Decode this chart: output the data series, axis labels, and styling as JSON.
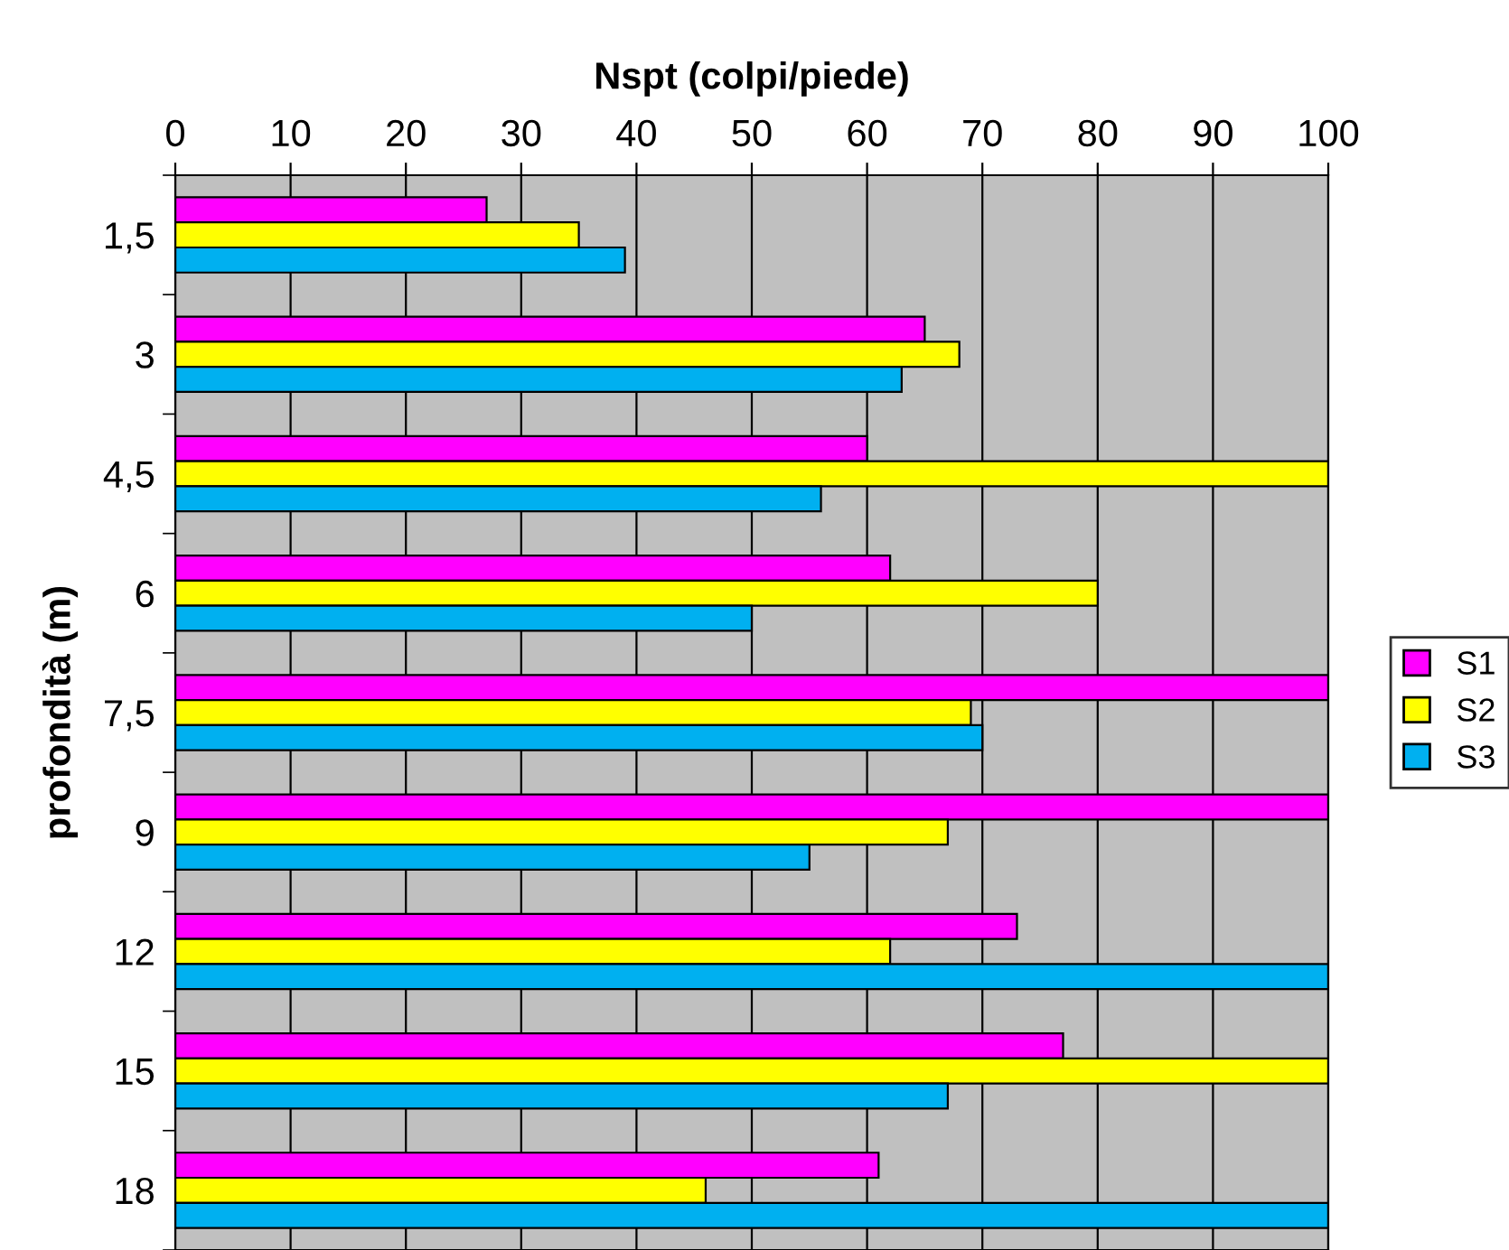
{
  "chart_data": {
    "type": "bar",
    "orientation": "horizontal",
    "xlabel": "Nspt (colpi/piede)",
    "ylabel": "profondità (m)",
    "categories": [
      "1,5",
      "3",
      "4,5",
      "6",
      "7,5",
      "9",
      "12",
      "15",
      "18"
    ],
    "series": [
      {
        "name": "S1",
        "color": "#ff00ff",
        "values": [
          27,
          65,
          60,
          62,
          100,
          100,
          73,
          77,
          61
        ]
      },
      {
        "name": "S2",
        "color": "#ffff00",
        "values": [
          35,
          68,
          100,
          80,
          69,
          67,
          62,
          100,
          46
        ]
      },
      {
        "name": "S3",
        "color": "#00b0f0",
        "values": [
          39,
          63,
          56,
          50,
          70,
          55,
          100,
          67,
          100
        ]
      }
    ],
    "xlim": [
      0,
      100
    ],
    "xticks": [
      0,
      10,
      20,
      30,
      40,
      50,
      60,
      70,
      80,
      90,
      100
    ],
    "grid": "x",
    "legend": "right"
  }
}
